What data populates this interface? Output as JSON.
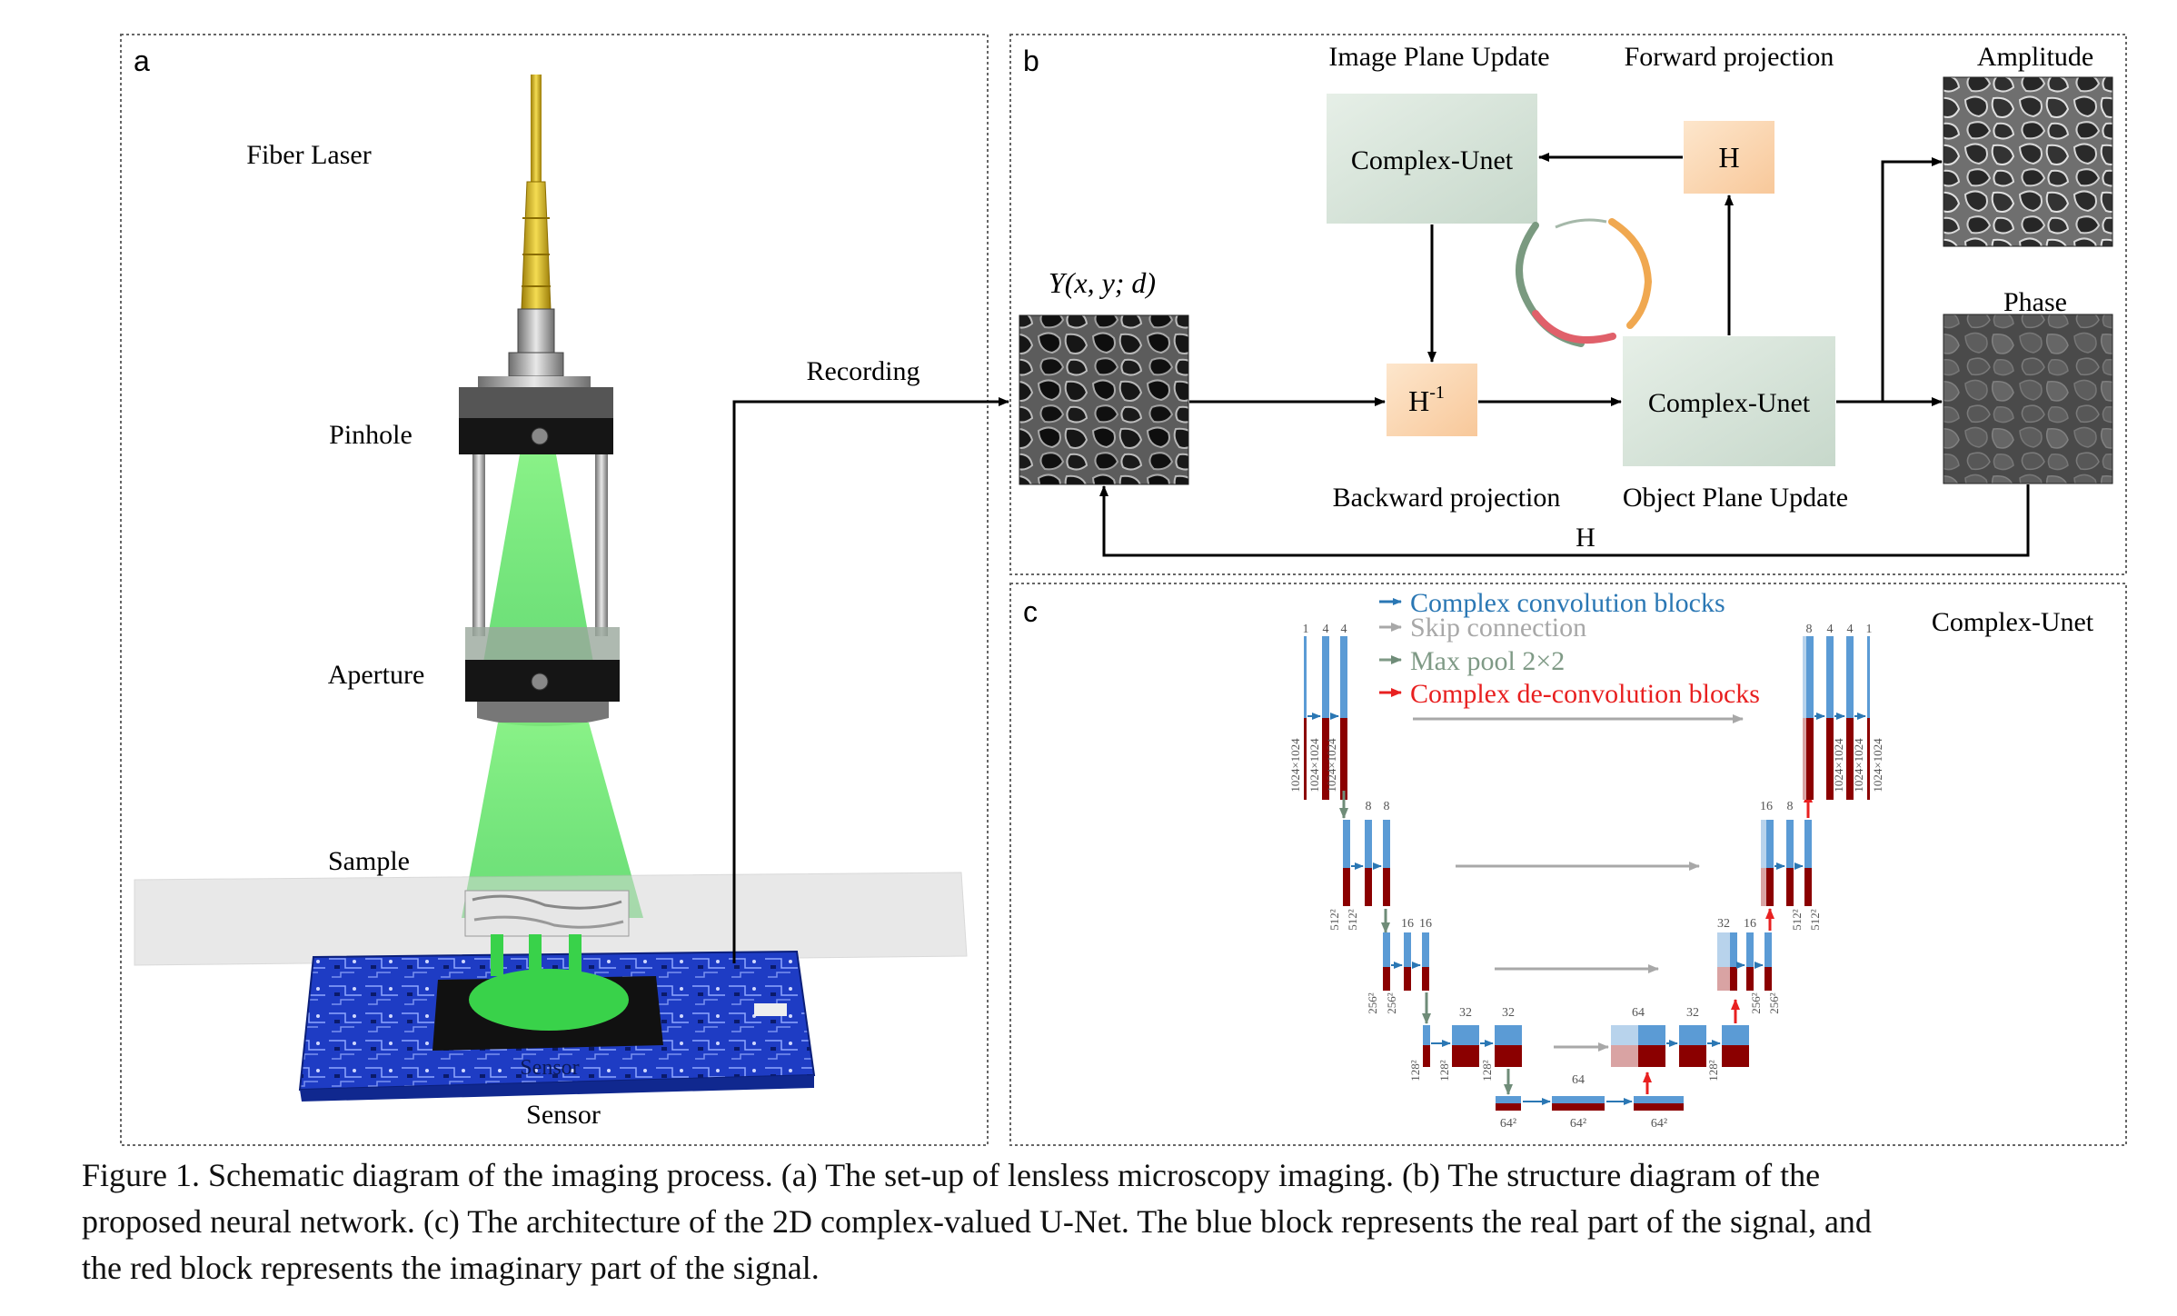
{
  "panels": {
    "a": {
      "letter": "a",
      "labels": {
        "fiber_laser": "Fiber Laser",
        "pinhole": "Pinhole",
        "aperture": "Aperture",
        "sample": "Sample",
        "sensor": "Sensor",
        "sensor_board_text": "Sensor"
      },
      "recording": "Recording"
    },
    "b": {
      "letter": "b",
      "image_plane_update": "Image Plane Update",
      "forward_projection": "Forward projection",
      "amplitude": "Amplitude",
      "phase": "Phase",
      "input_label": "Y(x, y; d)",
      "complex_unet_top": "Complex-Unet",
      "complex_unet_bottom": "Complex-Unet",
      "h_top": "H",
      "h_inv": "H",
      "h_inv_sup": "-1",
      "h_feedback": "H",
      "backward_projection": "Backward projection",
      "object_plane_update": "Object Plane Update"
    },
    "c": {
      "letter": "c",
      "title": "Complex-Unet",
      "legend": [
        {
          "label": "Complex convolution blocks",
          "color": "#2a77b4"
        },
        {
          "label": "Skip connection",
          "color": "#a8a8a8"
        },
        {
          "label": "Max pool 2×2",
          "color": "#7f9a86"
        },
        {
          "label": "Complex de-convolution blocks",
          "color": "#e82020"
        }
      ],
      "encoder": {
        "l1_channels": [
          "1",
          "4",
          "4"
        ],
        "l1_sizes": [
          "1024×1024",
          "1024×1024",
          "1024×1024"
        ],
        "l2_channels": [
          "8",
          "8"
        ],
        "l2_sizes": [
          "512²",
          "512²"
        ],
        "l3_channels": [
          "16",
          "16"
        ],
        "l3_sizes": [
          "256²",
          "256²"
        ],
        "l4_channels": [
          "32",
          "32"
        ],
        "l4_sizes": [
          "128²",
          "128²",
          "128²"
        ]
      },
      "bottom": {
        "channel": "64",
        "sizes": [
          "64²",
          "64²",
          "64²"
        ]
      },
      "decoder": {
        "l4_channels": [
          "64",
          "32"
        ],
        "l4_sizes": [
          "128²"
        ],
        "l3_channels": [
          "32",
          "16"
        ],
        "l3_sizes": [
          "256²",
          "256²"
        ],
        "l2_channels": [
          "16",
          "8"
        ],
        "l2_sizes": [
          "512²",
          "512²"
        ],
        "l1_channels": [
          "8",
          "4",
          "4",
          "1"
        ],
        "l1_sizes": [
          "1024×1024",
          "1024×1024",
          "1024×1024"
        ]
      }
    }
  },
  "caption": {
    "line1": "Figure 1. Schematic diagram of the imaging process.  (a) The set-up of lensless microscopy imaging.  (b) The structure diagram of the",
    "line2": "proposed neural network.  (c) The architecture of the 2D complex-valued U-Net. The blue block represents the real part of the signal, and",
    "line3": "the red block represents the imaginary part of the signal."
  },
  "colors": {
    "real_part": "#5b9bd5",
    "imaginary_part": "#8b0000",
    "unet_box": "#d9e6dc",
    "h_box": "#fbd9b5",
    "laser_beam": "#4fdc5a",
    "fiber": "#d4b51e",
    "pcb": "#1f3fbf"
  }
}
